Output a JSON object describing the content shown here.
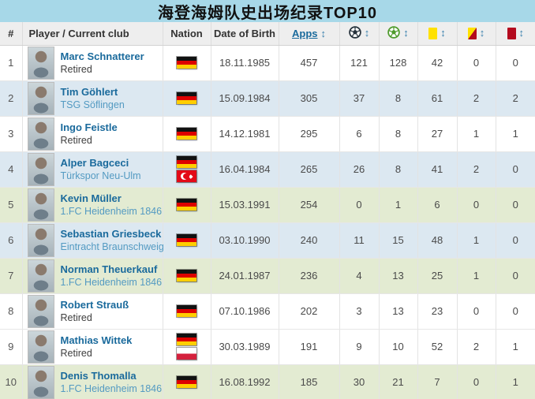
{
  "title": "海登海姆队史出场纪录TOP10",
  "table": {
    "headers": {
      "rank": "#",
      "player": "Player / Current club",
      "nation": "Nation",
      "dob": "Date of Birth",
      "apps": "Apps",
      "sort_glyph": "↕",
      "icon_columns": [
        "goals-ball-icon",
        "assists-ball-icon",
        "yellow-card-icon",
        "yellow-red-card-icon",
        "red-card-icon"
      ]
    },
    "rows": [
      {
        "rank": "1",
        "name": "Marc Schnatterer",
        "club": "Retired",
        "club_is_link": false,
        "flags": [
          "germany"
        ],
        "dob": "18.11.1985",
        "apps": "457",
        "goals": "121",
        "assists": "128",
        "yellow_cards": "42",
        "yellow_red_cards": "0",
        "red_cards": "0",
        "background": "white"
      },
      {
        "rank": "2",
        "name": "Tim Göhlert",
        "club": "TSG Söflingen",
        "club_is_link": true,
        "flags": [
          "germany"
        ],
        "dob": "15.09.1984",
        "apps": "305",
        "goals": "37",
        "assists": "8",
        "yellow_cards": "61",
        "yellow_red_cards": "2",
        "red_cards": "2",
        "background": "blue"
      },
      {
        "rank": "3",
        "name": "Ingo Feistle",
        "club": "Retired",
        "club_is_link": false,
        "flags": [
          "germany"
        ],
        "dob": "14.12.1981",
        "apps": "295",
        "goals": "6",
        "assists": "8",
        "yellow_cards": "27",
        "yellow_red_cards": "1",
        "red_cards": "1",
        "background": "white"
      },
      {
        "rank": "4",
        "name": "Alper Bagceci",
        "club": "Türkspor Neu-Ulm",
        "club_is_link": true,
        "flags": [
          "germany",
          "turkey"
        ],
        "dob": "16.04.1984",
        "apps": "265",
        "goals": "26",
        "assists": "8",
        "yellow_cards": "41",
        "yellow_red_cards": "2",
        "red_cards": "0",
        "background": "blue"
      },
      {
        "rank": "5",
        "name": "Kevin Müller",
        "club": "1.FC Heidenheim 1846",
        "club_is_link": true,
        "flags": [
          "germany"
        ],
        "dob": "15.03.1991",
        "apps": "254",
        "goals": "0",
        "assists": "1",
        "yellow_cards": "6",
        "yellow_red_cards": "0",
        "red_cards": "0",
        "background": "green"
      },
      {
        "rank": "6",
        "name": "Sebastian Griesbeck",
        "club": "Eintracht Braunschweig",
        "club_is_link": true,
        "flags": [
          "germany"
        ],
        "dob": "03.10.1990",
        "apps": "240",
        "goals": "11",
        "assists": "15",
        "yellow_cards": "48",
        "yellow_red_cards": "1",
        "red_cards": "0",
        "background": "blue"
      },
      {
        "rank": "7",
        "name": "Norman Theuerkauf",
        "club": "1.FC Heidenheim 1846",
        "club_is_link": true,
        "flags": [
          "germany"
        ],
        "dob": "24.01.1987",
        "apps": "236",
        "goals": "4",
        "assists": "13",
        "yellow_cards": "25",
        "yellow_red_cards": "1",
        "red_cards": "0",
        "background": "green"
      },
      {
        "rank": "8",
        "name": "Robert Strauß",
        "club": "Retired",
        "club_is_link": false,
        "flags": [
          "germany"
        ],
        "dob": "07.10.1986",
        "apps": "202",
        "goals": "3",
        "assists": "13",
        "yellow_cards": "23",
        "yellow_red_cards": "0",
        "red_cards": "0",
        "background": "white"
      },
      {
        "rank": "9",
        "name": "Mathias Wittek",
        "club": "Retired",
        "club_is_link": false,
        "flags": [
          "germany",
          "poland"
        ],
        "dob": "30.03.1989",
        "apps": "191",
        "goals": "9",
        "assists": "10",
        "yellow_cards": "52",
        "yellow_red_cards": "2",
        "red_cards": "1",
        "background": "white"
      },
      {
        "rank": "10",
        "name": "Denis Thomalla",
        "club": "1.FC Heidenheim 1846",
        "club_is_link": true,
        "flags": [
          "germany"
        ],
        "dob": "16.08.1992",
        "apps": "185",
        "goals": "30",
        "assists": "21",
        "yellow_cards": "7",
        "yellow_red_cards": "0",
        "red_cards": "1",
        "background": "green"
      }
    ]
  },
  "colors": {
    "title_bar_bg": "#a7d8e8",
    "title_text": "#111111",
    "header_bg": "#eeeeee",
    "row_alt_blue": "#dce8f1",
    "row_highlight_green": "#e3ebd2",
    "link_blue": "#1a6a9c",
    "club_link_blue": "#539ac2",
    "sort_arrow_blue": "#3c82ae",
    "yellow_card": "#ffe100",
    "red_card": "#b40a1e",
    "goals_ball": "#26323c",
    "assists_ball": "#4f9b2d"
  }
}
